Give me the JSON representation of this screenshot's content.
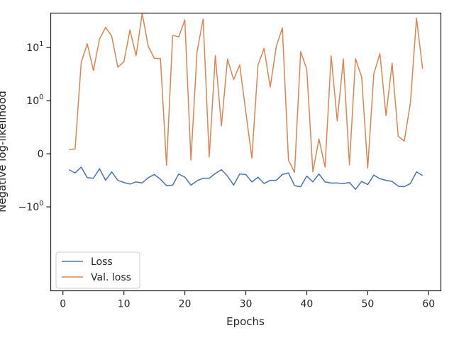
{
  "chart_data": {
    "type": "line",
    "xlabel": "Epochs",
    "ylabel": "Negative log-likelihood",
    "yscale": "symlog",
    "xlim": [
      -2,
      62
    ],
    "xticks": [
      0,
      10,
      20,
      30,
      40,
      50,
      60
    ],
    "yticks": [
      {
        "value": 10,
        "label": "10^1"
      },
      {
        "value": 1,
        "label": "10^0"
      },
      {
        "value": 0,
        "label": "0"
      },
      {
        "value": -1,
        "label": "-10^0"
      }
    ],
    "grid": false,
    "legend_position": "lower-left",
    "x": [
      1,
      2,
      3,
      4,
      5,
      6,
      7,
      8,
      9,
      10,
      11,
      12,
      13,
      14,
      15,
      16,
      17,
      18,
      19,
      20,
      21,
      22,
      23,
      24,
      25,
      26,
      27,
      28,
      29,
      30,
      31,
      32,
      33,
      34,
      35,
      36,
      37,
      38,
      39,
      40,
      41,
      42,
      43,
      44,
      45,
      46,
      47,
      48,
      49,
      50,
      51,
      52,
      53,
      54,
      55,
      56,
      57,
      58,
      59
    ],
    "series": [
      {
        "name": "Loss",
        "color": "#4c72b0",
        "values": [
          -0.3,
          -0.36,
          -0.25,
          -0.45,
          -0.46,
          -0.28,
          -0.5,
          -0.34,
          -0.5,
          -0.54,
          -0.57,
          -0.53,
          -0.55,
          -0.45,
          -0.39,
          -0.48,
          -0.6,
          -0.59,
          -0.38,
          -0.44,
          -0.59,
          -0.51,
          -0.46,
          -0.46,
          -0.37,
          -0.3,
          -0.42,
          -0.59,
          -0.38,
          -0.39,
          -0.53,
          -0.44,
          -0.56,
          -0.5,
          -0.5,
          -0.39,
          -0.36,
          -0.6,
          -0.62,
          -0.42,
          -0.53,
          -0.38,
          -0.53,
          -0.55,
          -0.55,
          -0.56,
          -0.54,
          -0.67,
          -0.52,
          -0.58,
          -0.4,
          -0.47,
          -0.5,
          -0.52,
          -0.61,
          -0.62,
          -0.56,
          -0.34,
          -0.41
        ]
      },
      {
        "name": "Val. loss",
        "color": "#dd8452",
        "values": [
          0.08,
          0.09,
          5.3,
          11.8,
          3.7,
          14.5,
          24,
          16.5,
          4.3,
          5.4,
          21.5,
          7,
          44,
          10.5,
          6.3,
          6.2,
          -0.22,
          17,
          16,
          33.5,
          -0.12,
          8.3,
          34.7,
          -0.06,
          7.1,
          0.53,
          6.1,
          2.5,
          4.7,
          0.79,
          -0.08,
          4.7,
          9.7,
          1.8,
          10.5,
          23.5,
          -0.12,
          -0.35,
          8.4,
          3.9,
          -0.34,
          0.28,
          -0.25,
          7,
          0.62,
          6.1,
          -0.21,
          6.2,
          2.8,
          -0.27,
          3.2,
          7.7,
          0.72,
          5.1,
          0.33,
          0.24,
          0.96,
          35.7,
          4
        ]
      }
    ]
  }
}
